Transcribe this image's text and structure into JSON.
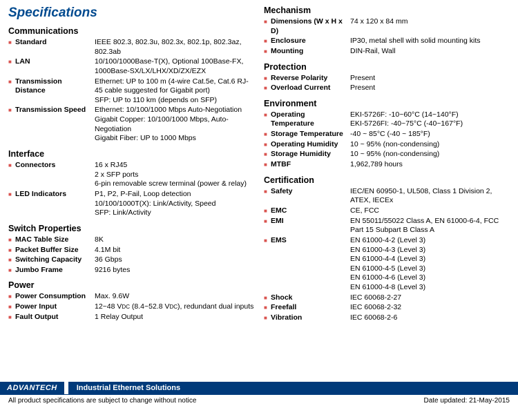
{
  "title": "Specifications",
  "columns": [
    {
      "sections": [
        {
          "title": "Communications",
          "rows": [
            {
              "label": "Standard",
              "value": "IEEE 802.3, 802.3u, 802.3x, 802.1p, 802.3az, 802.3ab"
            },
            {
              "label": "LAN",
              "value": "10/100/1000Base-T(X), Optional 100Base-FX, 1000Base-SX/LX/LHX/XD/ZX/EZX"
            },
            {
              "label": "Transmission Distance",
              "value": "Ethernet: UP to 100 m (4-wire Cat.5e, Cat.6 RJ-45 cable suggested for Gigabit port)\nSFP: UP to 110 km (depends on SFP)"
            },
            {
              "label": "Transmission Speed",
              "value": "Ethernet: 10/100/1000 Mbps Auto-Negotiation\nGigabit Copper: 10/100/1000 Mbps, Auto-Negotiation\nGigabit Fiber: UP to 1000 Mbps"
            }
          ]
        },
        {
          "title": "Interface",
          "rows": [
            {
              "label": "Connectors",
              "value": "16 x RJ45\n2 x SFP ports\n6-pin removable screw terminal (power & relay)"
            },
            {
              "label": "LED Indicators",
              "value": "P1, P2, P-Fail, Loop detection\n10/100/1000T(X): Link/Activity, Speed\nSFP: Link/Activity"
            }
          ]
        },
        {
          "title": "Switch Properties",
          "rows": [
            {
              "label": "MAC Table Size",
              "value": "8K"
            },
            {
              "label": "Packet Buffer Size",
              "value": "4.1M bit"
            },
            {
              "label": "Switching Capacity",
              "value": "36 Gbps"
            },
            {
              "label": "Jumbo Frame",
              "value": "9216 bytes"
            }
          ]
        },
        {
          "title": "Power",
          "rows": [
            {
              "label": "Power Consumption",
              "value": "Max. 9.6W"
            },
            {
              "label": "Power Input",
              "value": "12~48 V<sub>DC</sub> (8.4~52.8 V<sub>DC</sub>), redundant dual inputs",
              "html": true
            },
            {
              "label": "Fault Output",
              "value": "1 Relay Output"
            }
          ]
        }
      ]
    },
    {
      "sections": [
        {
          "title": "Mechanism",
          "rows": [
            {
              "label": "Dimensions (W x H x D)",
              "value": "74 x 120 x 84 mm"
            },
            {
              "label": "Enclosure",
              "value": "IP30, metal shell with solid mounting kits"
            },
            {
              "label": "Mounting",
              "value": "DIN-Rail, Wall"
            }
          ]
        },
        {
          "title": "Protection",
          "rows": [
            {
              "label": "Reverse Polarity",
              "value": "Present"
            },
            {
              "label": "Overload Current",
              "value": "Present"
            }
          ]
        },
        {
          "title": "Environment",
          "rows": [
            {
              "label": "Operating Temperature",
              "value": "EKI-5726F: -10~60°C (14~140°F)\nEKI-5726FI: -40~75°C (-40~167°F)"
            },
            {
              "label": "Storage Temperature",
              "value": "-40 ~ 85°C (-40 ~ 185°F)"
            },
            {
              "label": "Operating Humidity",
              "value": "10 ~ 95% (non-condensing)"
            },
            {
              "label": "Storage Humidity",
              "value": "10 ~ 95% (non-condensing)"
            },
            {
              "label": "MTBF",
              "value": "1,962,789 hours"
            }
          ]
        },
        {
          "title": "Certification",
          "rows": [
            {
              "label": "Safety",
              "value": "IEC/EN 60950-1, UL508, Class 1 Division 2, ATEX, IECEx"
            },
            {
              "label": "EMC",
              "value": "CE, FCC"
            },
            {
              "label": "EMI",
              "value": "EN 55011/55022 Class A,  EN 61000-6-4, FCC Part 15 Subpart B Class A"
            },
            {
              "label": "EMS",
              "value": "EN 61000-4-2 (Level 3)\nEN 61000-4-3 (Level 3)\nEN 61000-4-4 (Level 3)\nEN 61000-4-5 (Level 3)\nEN 61000-4-6 (Level 3)\nEN 61000-4-8 (Level 3)"
            },
            {
              "label": "Shock",
              "value": "IEC 60068-2-27"
            },
            {
              "label": "Freefall",
              "value": "IEC 60068-2-32"
            },
            {
              "label": "Vibration",
              "value": "IEC 60068-2-6"
            }
          ]
        }
      ]
    }
  ],
  "footer": {
    "logo": "ADVANTECH",
    "tagline": "Industrial Ethernet Solutions",
    "disclaimer": "All product specifications are subject to change without notice",
    "date": "Date updated: 21-May-2015"
  },
  "colors": {
    "title": "#004a8f",
    "bullet": "#d9534f",
    "footer_bg": "#003a7a"
  }
}
